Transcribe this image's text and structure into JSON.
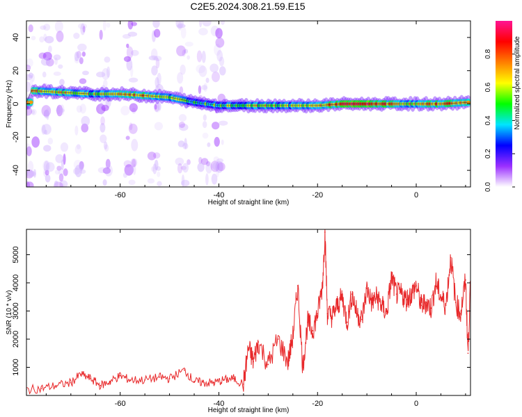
{
  "chart_data": [
    {
      "type": "heatmap",
      "title": "C2E5.2024.308.21.59.E15",
      "xlabel": "Height of straight line (km)",
      "ylabel": "Frequency (Hz)",
      "xlim": [
        -79,
        11
      ],
      "ylim": [
        -50,
        50
      ],
      "x_ticks": [
        -60,
        -40,
        -20,
        0
      ],
      "y_ticks": [
        -40,
        -20,
        0,
        20,
        40
      ],
      "colorbar": {
        "label": "Normalized spectral amplitude",
        "range": [
          0,
          1
        ],
        "ticks": [
          "0.0",
          "0.2",
          "0.4",
          "0.6",
          "0.8"
        ],
        "colors": [
          "#ffffff",
          "#9b30ff",
          "#0000ff",
          "#00e5ff",
          "#00ff00",
          "#ffff00",
          "#ff7f00",
          "#ff0000",
          "#ff1493"
        ]
      },
      "ridge": [
        {
          "x": -78,
          "freq": 8,
          "amp": 0.7
        },
        {
          "x": -72,
          "freq": 7,
          "amp": 0.65
        },
        {
          "x": -66,
          "freq": 6,
          "amp": 0.55
        },
        {
          "x": -60,
          "freq": 6,
          "amp": 0.7
        },
        {
          "x": -55,
          "freq": 5,
          "amp": 0.75
        },
        {
          "x": -50,
          "freq": 4,
          "amp": 0.6
        },
        {
          "x": -45,
          "freq": 1,
          "amp": 0.45
        },
        {
          "x": -40,
          "freq": -1,
          "amp": 0.5
        },
        {
          "x": -35,
          "freq": -1,
          "amp": 0.55
        },
        {
          "x": -30,
          "freq": -1,
          "amp": 0.6
        },
        {
          "x": -25,
          "freq": -1,
          "amp": 0.55
        },
        {
          "x": -20,
          "freq": -1,
          "amp": 0.65
        },
        {
          "x": -15,
          "freq": 0,
          "amp": 0.85
        },
        {
          "x": -10,
          "freq": 0,
          "amp": 0.9
        },
        {
          "x": -5,
          "freq": 0,
          "amp": 0.75
        },
        {
          "x": 0,
          "freq": 0,
          "amp": 0.6
        },
        {
          "x": 5,
          "freq": 0,
          "amp": 0.8
        },
        {
          "x": 11,
          "freq": 1,
          "amp": 0.7
        }
      ]
    },
    {
      "type": "line",
      "xlabel": "Height of straight line (km)",
      "ylabel": "SNR (10 * v/v)",
      "xlim": [
        -79,
        11
      ],
      "ylim": [
        0,
        5900
      ],
      "x_ticks": [
        -60,
        -40,
        -20,
        0
      ],
      "y_ticks": [
        1000,
        2000,
        3000,
        4000,
        5000
      ],
      "color": "#e8282a",
      "x": [
        -79,
        -76,
        -73,
        -70,
        -68,
        -66,
        -64,
        -62,
        -60,
        -58,
        -55,
        -52,
        -50,
        -47,
        -45,
        -43,
        -41,
        -39,
        -37,
        -35,
        -34,
        -33,
        -32,
        -30,
        -28,
        -26,
        -25,
        -24,
        -23,
        -22,
        -21,
        -20,
        -19,
        -18.5,
        -18,
        -17,
        -16,
        -15,
        -14,
        -13,
        -12,
        -11,
        -10,
        -9,
        -8,
        -7,
        -6,
        -5,
        -4,
        -3,
        -2,
        -1,
        0,
        1,
        2,
        3,
        4,
        5,
        6,
        7,
        8,
        9,
        10,
        10.5,
        11
      ],
      "y": [
        200,
        250,
        350,
        450,
        750,
        600,
        350,
        500,
        700,
        550,
        550,
        650,
        600,
        900,
        500,
        450,
        450,
        550,
        600,
        400,
        1700,
        1200,
        1900,
        1100,
        2000,
        1200,
        2100,
        3900,
        1000,
        2600,
        2300,
        2900,
        3900,
        5800,
        2900,
        2800,
        3200,
        3500,
        2600,
        3600,
        2900,
        2700,
        3800,
        3300,
        3500,
        3200,
        2900,
        4200,
        3600,
        3600,
        3400,
        3600,
        3900,
        3200,
        3300,
        3100,
        4000,
        3500,
        3200,
        4900,
        3300,
        2900,
        4100,
        1500,
        4000
      ]
    }
  ]
}
